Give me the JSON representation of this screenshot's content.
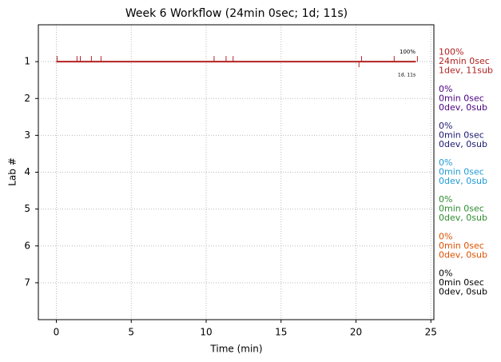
{
  "chart_data": {
    "type": "timeline",
    "title": "Week 6 Workflow (24min 0sec; 1d; 11s)",
    "xlabel": "Time (min)",
    "ylabel": "Lab #",
    "xlim": [
      -1.2,
      25.2
    ],
    "ylim": [
      8,
      0
    ],
    "xticks": [
      0,
      5,
      10,
      15,
      20,
      25
    ],
    "yticks": [
      1,
      2,
      3,
      4,
      5,
      6,
      7
    ],
    "grid": true,
    "labs": [
      {
        "lab": 1,
        "color": "#b22222",
        "x": [
          0,
          24
        ],
        "values": [
          1,
          1
        ],
        "up_ticks": [
          0.05,
          1.38,
          1.6,
          2.34,
          2.98,
          10.53,
          11.33,
          11.8,
          20.37,
          22.55,
          24.1
        ],
        "down_ticks": [
          20.2
        ],
        "top_label": "100%",
        "bottom_label": "1d, 11s",
        "annotation": [
          "100%",
          "24min 0sec",
          "1dev, 11sub"
        ]
      },
      {
        "lab": 2,
        "color": "#4b0082",
        "annotation": [
          "0%",
          "0min 0sec",
          "0dev, 0sub"
        ]
      },
      {
        "lab": 3,
        "color": "#191970",
        "annotation": [
          "0%",
          "0min 0sec",
          "0dev, 0sub"
        ]
      },
      {
        "lab": 4,
        "color": "#1e9ad6",
        "annotation": [
          "0%",
          "0min 0sec",
          "0dev, 0sub"
        ]
      },
      {
        "lab": 5,
        "color": "#2e8b2e",
        "annotation": [
          "0%",
          "0min 0sec",
          "0dev, 0sub"
        ]
      },
      {
        "lab": 6,
        "color": "#e05000",
        "annotation": [
          "0%",
          "0min 0sec",
          "0dev, 0sub"
        ]
      },
      {
        "lab": 7,
        "color": "#000000",
        "annotation": [
          "0%",
          "0min 0sec",
          "0dev, 0sub"
        ]
      }
    ]
  }
}
